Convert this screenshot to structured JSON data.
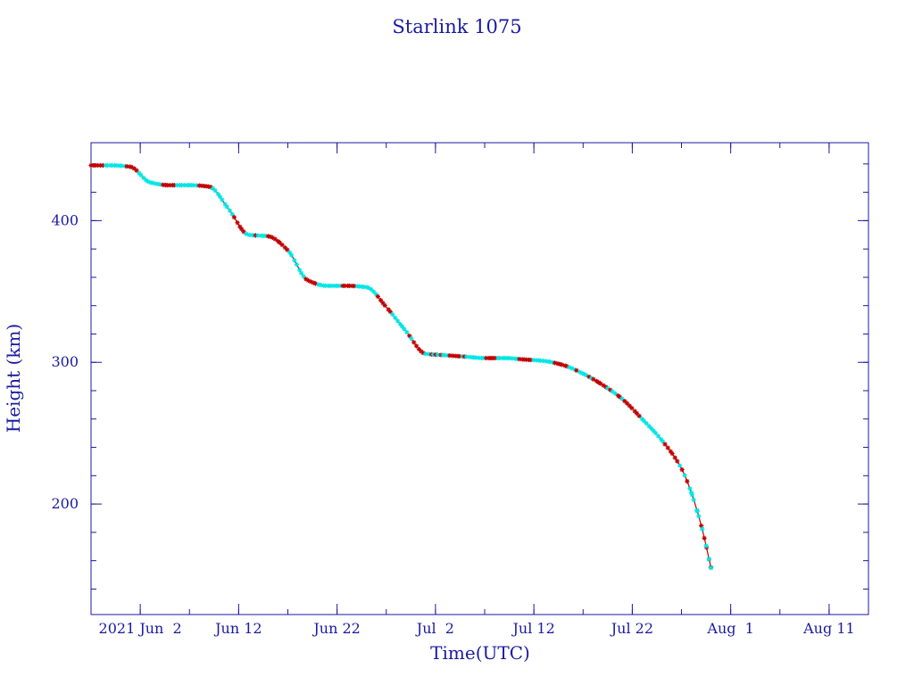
{
  "chart_data": {
    "type": "line",
    "title": "Starlink 1075",
    "xlabel": "Time(UTC)",
    "ylabel": "Height (km)",
    "x_ticks": [
      {
        "date": "2021-06-02",
        "label": "2021 Jun  2"
      },
      {
        "date": "2021-06-12",
        "label": "Jun 12"
      },
      {
        "date": "2021-06-22",
        "label": "Jun 22"
      },
      {
        "date": "2021-07-02",
        "label": "Jul  2"
      },
      {
        "date": "2021-07-12",
        "label": "Jul 12"
      },
      {
        "date": "2021-07-22",
        "label": "Jul 22"
      },
      {
        "date": "2021-08-01",
        "label": "Aug  1"
      },
      {
        "date": "2021-08-11",
        "label": "Aug 11"
      }
    ],
    "y_ticks": [
      200,
      300,
      400
    ],
    "xlim": [
      "2021-05-28",
      "2021-08-15"
    ],
    "ylim": [
      122,
      455
    ],
    "grid": false,
    "colors": {
      "axis": "#1a1aa0",
      "line": "#c00000",
      "marker_cyan": "#00e5e5",
      "marker_red": "#c00000"
    },
    "series": [
      {
        "x": [
          "2021-05-28",
          "2021-05-30",
          "2021-06-01",
          "2021-06-03",
          "2021-06-05",
          "2021-06-07",
          "2021-06-09",
          "2021-06-11",
          "2021-06-13",
          "2021-06-15",
          "2021-06-17",
          "2021-06-19",
          "2021-06-21",
          "2021-06-23",
          "2021-06-25",
          "2021-06-27",
          "2021-06-29",
          "2021-07-01",
          "2021-07-03",
          "2021-07-05",
          "2021-07-07",
          "2021-07-09",
          "2021-07-11",
          "2021-07-13",
          "2021-07-15",
          "2021-07-17",
          "2021-07-19",
          "2021-07-21",
          "2021-07-23",
          "2021-07-25",
          "2021-07-27",
          "2021-07-28",
          "2021-07-29",
          "2021-07-30"
        ],
        "y": [
          439,
          439,
          438,
          427,
          425,
          425,
          424,
          408,
          390,
          389,
          379,
          358,
          354,
          354,
          353,
          339,
          322,
          306,
          305,
          304,
          303,
          303,
          302,
          301,
          298,
          292,
          284,
          274,
          260,
          245,
          225,
          208,
          185,
          155
        ]
      }
    ]
  }
}
